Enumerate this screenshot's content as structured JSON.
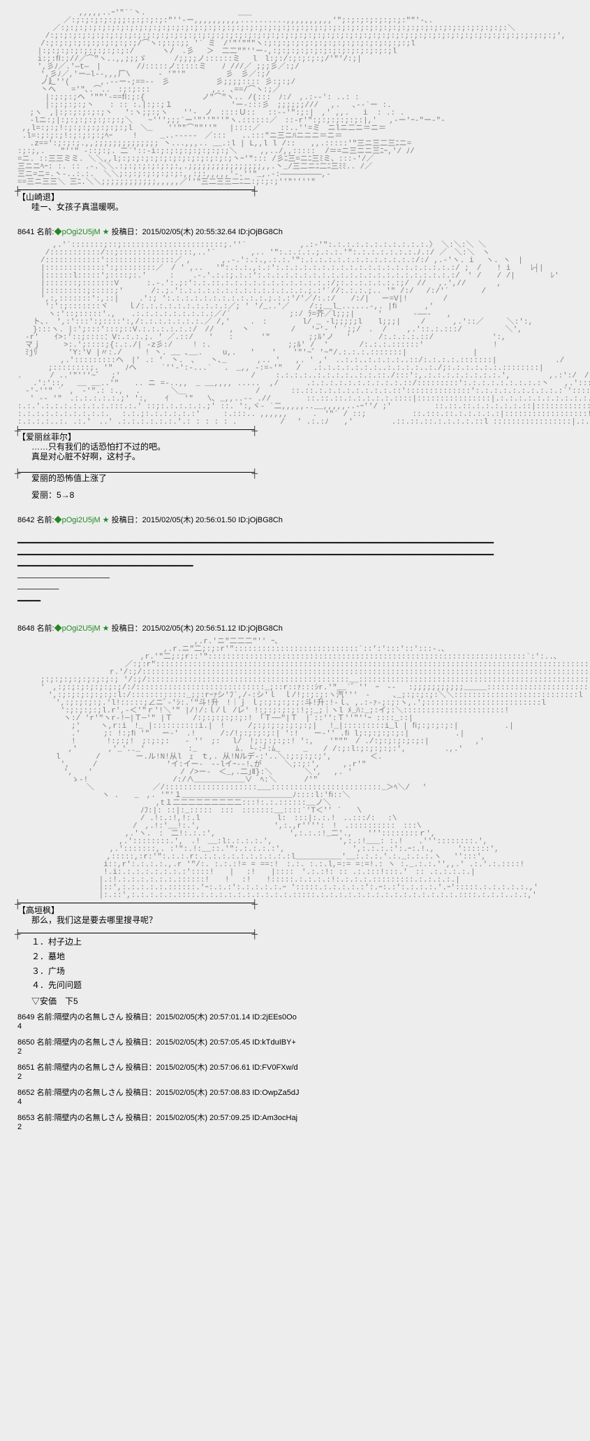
{
  "colors": {
    "background": "#ededed",
    "text_primary": "#222222",
    "text_aa": "#808080",
    "trip": "#228822",
    "divider": "#000000"
  },
  "block1": {
    "speaker": "【山崎退】",
    "line1": "哇ー、女孩子真温暖啊。"
  },
  "post1": {
    "num": "8641",
    "name_label": "名前:",
    "trip": "◆pOgi2U5jM ★",
    "date_label": "投稿日：",
    "date": "2015/02/05(木) 20:55:32.64",
    "id": "ID:jOjBG8Ch"
  },
  "block2": {
    "speaker": "【爱丽丝菲尔】",
    "line1": "……只有我们的话恐怕打不过的吧。",
    "line2": "真是对心脏不好啊，这村子。",
    "narration1": "爱丽的恐怖值上涨了",
    "narration2": "爱丽：5→8"
  },
  "post2": {
    "num": "8642",
    "name_label": "名前:",
    "trip": "◆pOgi2U5jM ★",
    "date_label": "投稿日：",
    "date": "2015/02/05(木) 20:56:01.50",
    "id": "ID:jOjBG8Ch"
  },
  "post3": {
    "num": "8648",
    "name_label": "名前:",
    "trip": "◆pOgi2U5jM ★",
    "date_label": "投稿日：",
    "date": "2015/02/05(木) 20:56:51.12",
    "id": "ID:jOjBG8Ch"
  },
  "block3": {
    "speaker": "【高垣枫】",
    "line1": "那么，我们这是要去哪里搜寻呢？",
    "opt1": "１．村子边上",
    "opt2": "２．墓地",
    "opt3": "３．广场",
    "opt4": "４．先问问题",
    "anker": "▽安価　下5"
  },
  "replies": [
    {
      "num": "8649",
      "name_label": "名前:",
      "name": "隔壁内の名無しさん",
      "date_label": "投稿日：",
      "date": "2015/02/05(木) 20:57:01.14",
      "id": "ID:2jEEs0Oo",
      "vote": "4"
    },
    {
      "num": "8650",
      "name_label": "名前:",
      "name": "隔壁内の名無しさん",
      "date_label": "投稿日：",
      "date": "2015/02/05(木) 20:57:05.45",
      "id": "ID:kTduIBY+",
      "vote": "2"
    },
    {
      "num": "8651",
      "name_label": "名前:",
      "name": "隔壁内の名無しさん",
      "date_label": "投稿日：",
      "date": "2015/02/05(木) 20:57:06.61",
      "id": "ID:FV0FXw/d",
      "vote": "2"
    },
    {
      "num": "8652",
      "name_label": "名前:",
      "name": "隔壁内の名無しさん",
      "date_label": "投稿日：",
      "date": "2015/02/05(木) 20:57:08.83",
      "id": "ID:OwpZa5dJ",
      "vote": "4"
    },
    {
      "num": "8653",
      "name_label": "名前:",
      "name": "隔壁内の名無しさん",
      "date_label": "投稿日：",
      "date": "2015/02/05(木) 20:57:09.25",
      "id": "ID:Am3ocHaj",
      "vote": "2"
    }
  ],
  "aa1": "　　　　　　　　,,,,,..ｰ'\"´`丶.　　　　　　　　　　　　___\n　　　　　　／:;:;:;:;:;;;:;:;:;:;:\"''‐ー,,,,,,,,,,..........,,,,,,,,,,'\";:;:;:;:;:;:;:\"\"'-､.\n　　　　 ／:;:;:;:;:;:;:;:;:;:;:;:;:;:;:;:;:;:;:;:;:;:;:;:;:;:;:;:;:;:;:;:;:;:;:;:;:;:;:;:;:;:;:;:;:;:;:;:;:＼\n　　　 /:;:;:;:;:;:;:;:;:;:;:;:;:;:;:;:;:;:;:;:;:;:;:;:;:;:;:;:;:;:;:;:;:;:;:;:;:;:;:;:;:;:;:;:;:;:;:;:;:;:;:;:;:;:;:;',\n　　　/:;:;:;:;:;:;:;:;:;:;/⌒ヽ:;:;:;; '´ ミ　/'\"'\"\"\"ヽ:;:;:;:;:;:;:;:;:;:;:;:;:;:;:;:;l\n　　 |:;:;:;:;:;:;:;:;:;:/　　　 ヽ/　.彡　 ＞　二二\"\"''ー-,:;:;:;:;:;:;:;:;:;:;:;:;:;l\n　　 i:;:ﬂ:;//／⌒\"ヽ..,,;;;ゞ　　　 /;;;;ノ::::::ミ　 l　l:;:/:;:;:;:;/'\"'/:;|\n　　 ',彡ﾉ／.'―t―　| 　　　　/ﾉ:::::ノ:::::ミ　　ﾉ ///／ ;;;彡／:;/\n　　　',彡ﾉ／,'ー―l--,,,厂\\　　 　- '\"'\"　　 　 　彡　彡／:;/\n　　　ノ廴''(　　　　,.-‐ー-;==--　彡　　　　　　彡;;;;:::: 彡:;:;/\n　　　丶へ　　='\"､.⌒..　:;:;:::　　　　　　　　,.. ､==/⌒ヽ:;／\n　　　 |:;:;:;ヘ '\"\"'-==ﬂ:;:{ 　　　 　 　 ノ\"⌒\"ヽ.. /(:::　ﾉ:/　,.:--': ..: :\n　　　 |:;:;:;:;丶　　: :: :.|:;:;１ 　　　　　　　'ー-:::彡　;;;;;;///　 ,.　 ､--`ー :.\n　 ;ヽ　,|:;:;:;:;:;丶　 ':ヽ:;:;ヽ　　''-　ノ　::::Ｕ::　 ::-‐'\":;:|　,' ,,.   i  : .: .\n　 -lニ:;|:;:;:;:;:;:;:;＼　｀~''';;;`ー'\"''\"''\"ヽ.::::::／　::-r'\":;:;:;:;:;:|,'　 ,-ー'ｰ-\"ー-\"-\n ,,l=:;:;!:;:;:;:;:;:;:;l　＼_　　''\"\"⌒\"\"''\"　 |::::／　　 ::..''=ミ　ニlニ二ニ＝ニ＝\n .l=:;:;:;!:;:;:;:;ﾍｰ　　 !　　　_..-‐‐-‐　／:::　　..:::\"ニ三ニﾊニニニ＝ニ＝\n　 .z==':;:;:;.,,;;;;;;;;;;;;;; 丶...,,,.. __.:l | L,,l l /::　　,,.:::::'\"三ニ三二三ﾆニ=\n:;:;,.　　\"''\" -::;:;. 二`'::-i:;:;:;:;:;:;:;:;＼     ,,../,,:::::  /＝=ニ三ニニ三ﾆｰ,'/ ﾉ/\n=ニ. ::三三ミミ. ＼＼,,l;:;:;:;:;:;:;:;:;:;:;:;:;丶ｰ'\"::: /彡ﾆ三=ニﾆ三ﾐミ、:::-'/／\n三ニニﾍｰ: :. :: .-.＼＼.:;:;:;:;:;:;:,.;;;;;;;;;;;;;;;;,,.丶_/三二ニﾆ二ﾆ三ﾐﾐ.. /／\n三ニ=ニ=.丶-..:.:.  ＼＼;:;:;:;:;:;:;:,,:;:,,,,,'-.''\"_,.-:―――――――――,-\n==三ニ三三＼ 三ﾆ.＼＼;;;;;;;;;;;;,,,,,／''\"三二三三二ﾆ二:;:;:;''\"''''\"",
  "aa2": "　　　 　,.'´:::::::;::;::::::::::::::::::::::;.''´　　　　　　　,.:-'\":.:.:.:.:.:.:.:.:.:.:.〉 ＼:＼:＼ ＼\n　　　 /:::::::::::/::;::::::::::::::::,..'´　　　　 ,.. '\":.:.:.:.;.:.:.'\":.:.:.:.:.:.:.ﾉ.:/ ／　＼:＼　ヽ\n　　　/::::::::::::':::::::::::::::／ ,　　　　,.-.':.:.,.:.:.'\":.:.:.:.:.:.:.:.:.:.:.:.:/:/ ,.-'ヽ. i　 ヽ. ヽ　|\n　　　|:::::::::::::':;::::::::／　/ ' ,.. 　'\":.:.:.,:.:':.:.:.:.:.:.:.:.:.:.:.:.:.:.:.:.:.:.:.:/ ;　/　　! i　　 ﾚ┤|\n　　　|::::::l:::::';::::;:.'　　　:    .-.'.:.:;.:.:':.:.:.:.:.:.:.:.:.:.:.:.:.:.:.:.:.:.:.:.:.:/　' /　　/ /|　　　　 ﾚ'\n　　　|:::::::;:::::::V　　　 :.-.':.;:':.:.::.:.:.:.:.:.:.:.:.:.:.:.:/;:.:.:.:.:.:.:;/　//　 ,.',//　　　　,\n　　　|:::::::::;:::::;'　　　 /:.;.':.:.:.:.:.:.:.:.:.:.:.:.:.:.;.:'´//:.:.:.;.. '\" /:/　 /:/'´ 　　　 /\n　　　',:,:::::::':,::|　 　.':; ':.:.:.:.:.:.:.:.:.:.:.;.:.:'/'／/:.:/　　/:/|　 ー=V|!　　　　 /\n　　　 ':':;:::::::ヾ　　 ｌ/:.:.:.:.:.:.:.:.:.:／; ' '/_..'／ 　　/:;__l_......-,. |ﬁ　　　 ,'\n　　　　ヽ:'::;:::::'.,　　.:.:.:.:.:.:.:.:.:／/´　　　　　 　　;:/ ﾗ=芥／l;;;|　　　'　　　　-――-　　,\n　　ト､.　',:':::':;::::':,/:.:.:.:.:.:.:.／ /,'　　 .　: 　　　　l/ _ -l;;;;;l　　l;;;|　　 /　　　 ,.'::／　　　＼:':,\n　　}:::ヽ. |:';:::':::;::V.:.:.:.:.:.:/　//　　,　丶 　 　 　 /　　'ｰ'- ' ´;;/　.  /　　 ,.'::.:.:::/　　　　　 ＼',\n　-r'　　ｲ>:'::;::::：V:.:.:.;. ' ／.::/　　'　　:　　　 '\"　　　　　;;ﾙ'ノ　 ′　　　 /:.:.:.:.::/　　　　　　　 ':,\n　マｊ　　　>:.';::::;{:.:./| -z彡:/　　 ! :.　　　　　　　　　　;;ﾙ' /  '　　　　/:.:.:.::::::'　　　　　　　　　!\n　ﾐjﾘ　　　　'Y:'V |〃:./　　　! 丶. __ ､__.　　 u,.   ' 　 ' 　 '\"'~゛'~\"/.:.:.:.:::::::|　　　　　　　　 |\n　　　　　 ,.':::::::::ヘ　|' .: '　丶.　、　　丶､_　　　　,.. '　　,. ' ,'　..:.:..:.:.:.:..::/:.:.:.:.:::::::|　　　　　　　 ./\n　　　　;::::::::;. '\"　 ﾉヘ　　  ´''‐':-...`　 .　_,, -:=‐'\"   /　 .:.:.:.:.:.:.:..:.:.:.:..:./;:.:.:.:.:.:.::::::::|　　　　　　 ,.:'\n.　　　 / ..'\"'''~゛　;'　　　　　　　　　　　　　　　　　/　　 :.:.:.:..:.:.:.:..:.:.::./:::':,.:.:.:.:.:.:.:.:.',　　　　　,.:':/　/\n　　.':'::,　 __ __..'\"　　.. ニ =-..,,　_ __,,,, .....  ,/　　　 .:.:.:.:.:.:.:.:.:.:.::/:::::::::':.:.:.:.:.:.:.:.:丶　　,.':::::/ '\" ,.-\n　-'‐''\" ´　,　-'\".: :., 　.　　　　＼＿　　　　　　　　　/　　　　::.::.:.:.:.:.:.:.:.:.::'::::::::::::::':.:.:.:.:.:.:.:.:.:`'::::;:.ｰ '\"/′\n 　' -‐ '\"　.:.:.:.:.:.;' ':,　  ｲ　　'\"   \\､ _,,..-- .//　　　　 ::.::.::.:.:.:.:.:.::::|::::::::::::::::|.:.:.:.:.:.:.:.:.:.:.;:.'::::::,:.'\n:.:.'.:.:.:.:.:.:.:.:::.:.' ::;:.:.:.:.:.;' ::. ':,ヾ- `二,,,,,..__,,,,,..-ｰ''/ ;'　　　　　 ::.::.::.:.:.:.:.:.::|::::::::::::::::|.:.:.:.:.:.:.:.:.:.'.:.:.::;.'\n:.:.:.:.:.:.:.:.:.:. 　:.:.;:.:.:.:.:.:'　　　:.:::.. ,,,,,, 　　 .　'\"´ / ::;　　　　　　::.:::.::.:.:.:.:.:|::::::::::::::::::!.:.:.:.:.:.:.:::':.:.::::.'\n:.:.:.:..:. .:.'　..' .:.:.:.:.:.:.'.: : : : : .　　      /　 ' .:.:ﾉ　　,'　　　　　.::.::.::.:.:.:.:.::l :::::::::::::::::|.:.:.:.:.:.:'.:.:.:.:.::l",
  "aa3": "　　　　　　　　　　　　　　　　　　　　　　　,.r.'ニ\"二二二\"'' ｰ､\n　　　　　　　　　　　　　　　　　　　,.r.ニ\"二;:;:r'\":::::::::::::::::::::::::::`::':':::'::':::‐.､\n　　　　　　　　　　　　　　　　,r.'\"二;:;r::'\":::::::::::::::::::::::::::::::::::::::::::::::::::::::::::::::::::::`:':..､\n　　　　　　　　　　　　　　／:;:r\":::::::::::::::::::::::::::::::::::::::::::::::::::::::::::::::::::::::::::::::::::::::::::::::`::、\n　　　　　　　　　　　　r.'/:;/:::::::::::::::::::::::::::::::::::::::::::::::::::::::::::::::::::::::::::::::::::::::::::::::::::::::::::::::ヽ\n　　　;:;:;:;:;:;:;:;:; '/:;/::::::::::::::::::::::::::::::::::::::::::::__:::::::::::::::::::::::::::::::::::::::::::::::::::::::::::::::::::::::::::;:\n　　　'　,:;:;:;:;:;:;:;/:/::::::::::::::::::::::::::::_;::r::ｧ:::ｼr.'\"__`゛''　ｰ　--　 :;;;;;;;;;;;_____:::::::::::::::::::::::::::::::::::l\n　　　　',:;:;:;:;:;:;:l:/::::::::::::_;;:rｰｧシ'ﾌ´,/-:シ'ｌ　ｌ/!;:;:;:ヽ汽'''　-　　　､_;:;:;:;:＼＼:::::::::::::::::::::::::::l\n　　　　　',:;:;:;:;.'l!:::::;∠ニﾞ-'ｼ:.'\"斗!升　!｜ｊ ｌ;:;:;:;:;:斗!升:!-ｌ､ ,.:‐ｧ‐;:;:ヽ,.';:::::::::::::::::::::::::l\n　　　　　 ':;:;:;:;l.r',-＜'\"ｒ'!＼'\" |/!/:ｌ/ｌ /レ' !:;:;:;:;:!;:_;｜ヽl ﾒ_ﾊ:_;:イ;:＼::::::::::::::::::::::!\n　　　　　　ヽ:/ 'r'\"ヽr‐!─|Ｔ─'\" |Ｔ　　 /:;:;:;:;:;:!　｢Ｔ──\"|Ｔ　|ﾞ::'':Ｔ''\"''ｰ ::::_::|\n　　　　　　　;'　　 ヽ,r:i　!_ |::::::::::i.|　!　　　/;:;:;:;:;:;:;|　 !_|:::::::::i_l | ﬁ;:;:;:;:|　　　　　　.|\n　　　　　　　.'　　　;: !:;ﬁ '\" 　ー‐'　.! 　　 /:/!;:;:;:;:| ':!　　ー‐'' .ﬁ l;:;:;:;:;:|　　　　　　.|\n　　　　　　　!　　　　!:;:;!　;:;:;:　　- '′　;:　 l/　!;:;:;:;:! ':,　　'\"\"\"　/ ./:;:;:;:;:;:|　　　　　　,'\n　　　　　　 ,'　　　　,'_'.._'　　　　　 :_　　　　　ﾑ. └-:┘:ﾑ_　　　_　　/ /:;:l:;:;:;:;:',　　　　　.,.'\n　　　　　l　　　　 /　　　 　ー.ル!N!从l　ｪ　ｔ,. 从!Nルデ-:'..＼:;:;:;:;',　　　　　＜.\n　　　　　 ',　　　/　　　　　　　　　'イ:イー-　--lイｰ--!､が　　　＼;:;:',　　　,.r'\"\n　　　　　　',　　'　　　 　 　　 　　　 / />ー-　＜_,.二｣Ⅱ}:＼ 　　 　＼', 　,. '\n　　　　　　　ゝ-!　　　 　 　 　　 　 /:/∧___________∨　ﾍ:＼　　　 /'\"\n　　　　　　　　　＼　　　　　　　 ／/::::::::::::::::::::___::::::::::::::::::::::::_＞ﾍ＼/ 　'\n　　　　　　　　　　　ヽ .　　_　,. '\"'１________________________ﾉ::::l:'ﬁ::＼\n　　　　　　　　　　　　　　　　　　,t１二二二二二二二二二:::!:.:.::::::__ノ＼\n　　　　　　　　　　　　　　　　ﾉﾌ:|: ::|:_:::::　:::　:::::::__::::`'T＜'' ´　　\\\n　　　　　　　　　　　　　　　　/ .!:.:!,!:.l　　　　　　　　　　l:　:::|:.:.!　..:::/:　 :\\\n　　　　　　　　　　　　　　　/　,.!:'__!:.',　　　　　　　　　 ',:.,r'''':　!　.::::::::::　:::\\\n　　　　　　　　　　　　　　,.'ヽ.　:　二!:.:.:',　　　　　　　　　 ',:.:.:!_二'.,　　'''::::::::ｒ',\n　　　　　　　　　　　 　 ,.'::::::::.',　.!　__:l:.:.:.:.',　　　　　　　　 ',:.:!___: :.!　　.'''::::::::.',\n　　　　　　　　　　　　,.':::::::,. :'\":.!:__::.'\":.:.:.:.:',　 　 　　 　　　',:.:.:.:':.ｰ:.!.,　　　'::::::',\n　　　　　　　　　　　 ,:::::,:r:'\":.:.:.r:.:.:.:.:.:.:.:.:.:.:l__________'__:.:.:.'.:._:.:.:.ヽ　 '':::',\n　　　　　　　　　 　 i::,r':.:.:.:.,.r '\"/:. :.:.:!= = ==:!　:.:. :.:.l,=:= =:=!.: ヽ :._.:.:.'',,.' .:.'.:.::::!\n　　　　　　　　　 　 !.i:.:.:.:.:.:.:.:'::::!　　|　 :!　　|::::　'.:.:!: :: .:.:::!:::.'　:: .:.:.:.:.|\n　　　　　　　　　　 |.:!.:.:.:.:.:.:.::::::!　　!　 :!　　!:::::.:.:.:.:!:.:.:.:.:::::::::.:.:.:.:.|\n　　　　　　　　　　 |::',:.:.:.:.:.::::::.'ｰ:.:.:':.:.:.:.:.ｰ ':::::.:.:.:.:.:':.ｰ:.:':.:.:.:.'.ｰ':::::.:.:.:.:.:.,'\n　　　　　　　　　　 |:.::',:.:.:.:.:.::::.:.:.:.:.:.:.:.:.:.:.:::::.:.:.:.:.:.:.:.:.:.:.:.:.:.:.:.::::.:.:.:..:.:,'"
}
